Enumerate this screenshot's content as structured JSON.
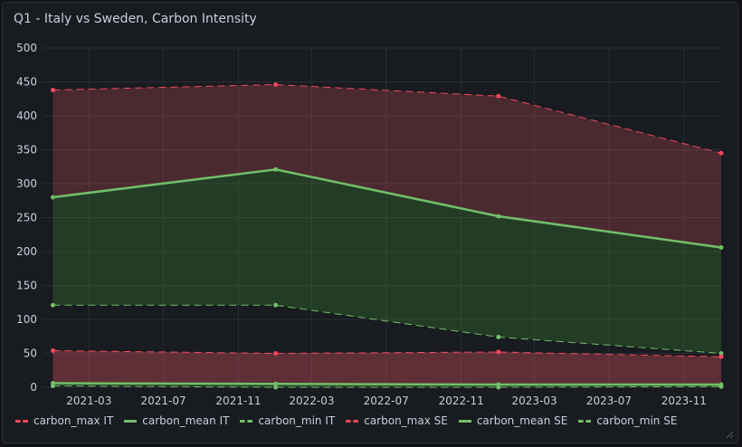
{
  "panel": {
    "title": "Q1 - Italy vs Sweden, Carbon Intensity"
  },
  "colors": {
    "red": "#f2495c",
    "green": "#73bf69",
    "fill_red": "#e35563",
    "fill_green": "#3e8a37"
  },
  "chart_data": {
    "type": "area",
    "title": "Q1 - Italy vs Sweden, Carbon Intensity",
    "ylim": [
      0,
      500
    ],
    "yticks": [
      0,
      50,
      100,
      150,
      200,
      250,
      300,
      350,
      400,
      450,
      500
    ],
    "xlim": [
      "2020-12-15",
      "2024-01-01"
    ],
    "xticks": [
      "2021-03",
      "2021-07",
      "2021-11",
      "2022-03",
      "2022-07",
      "2022-11",
      "2023-03",
      "2023-07",
      "2023-11"
    ],
    "x": [
      "2021-01-01",
      "2022-01-01",
      "2023-01-01",
      "2024-01-01"
    ],
    "grid": true,
    "legend_position": "bottom",
    "series": [
      {
        "name": "carbon_max IT",
        "values": [
          438,
          446,
          429,
          345
        ],
        "color": "#f2495c",
        "style": "dashed"
      },
      {
        "name": "carbon_mean IT",
        "values": [
          280,
          321,
          252,
          206
        ],
        "color": "#73bf69",
        "style": "solid"
      },
      {
        "name": "carbon_min IT",
        "values": [
          121,
          121,
          74,
          50
        ],
        "color": "#73bf69",
        "style": "dashed"
      },
      {
        "name": "carbon_max SE",
        "values": [
          54,
          50,
          52,
          45
        ],
        "color": "#f2495c",
        "style": "dashed"
      },
      {
        "name": "carbon_mean SE",
        "values": [
          6,
          5,
          4,
          4
        ],
        "color": "#73bf69",
        "style": "solid"
      },
      {
        "name": "carbon_min SE",
        "values": [
          2,
          0,
          0,
          1
        ],
        "color": "#73bf69",
        "style": "dashed"
      }
    ]
  }
}
